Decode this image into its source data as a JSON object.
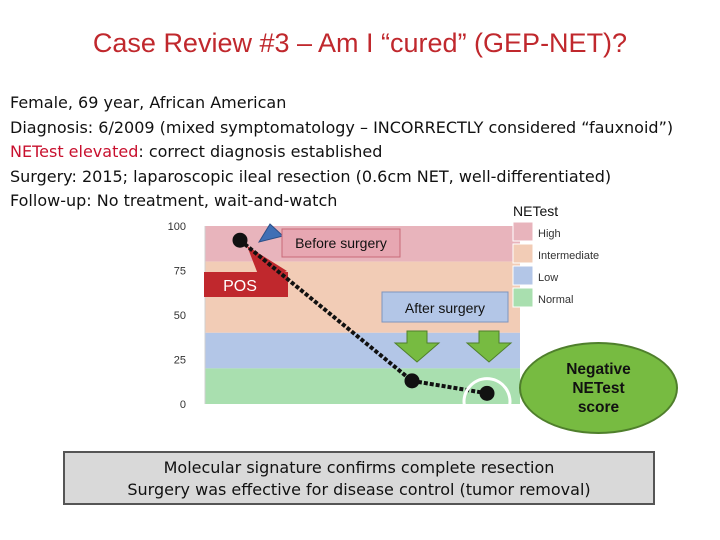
{
  "title": "Case Review #3 – Am I “cured” (GEP-NET)?",
  "patient": {
    "demographics": "Female, 69 year, African American",
    "diagnosis_label": "Diagnosis:",
    "diagnosis_text": " 6/2009 (mixed symptomatology – INCORRECTLY considered “fauxnoid”)",
    "netest_label": "NETest elevated",
    "netest_text": ": correct diagnosis established",
    "surgery_label": "Surgery:",
    "surgery_text": " 2015; laparoscopic ileal resection (0.6cm NET, well-differentiated)",
    "followup_label": "Follow-up:",
    "followup_text": " No treatment, wait-and-watch"
  },
  "chart_data": {
    "type": "scatter",
    "title": "",
    "xlabel": "",
    "ylabel": "",
    "ylim": [
      0,
      100
    ],
    "yticks": [
      "100",
      "75",
      "50",
      "25",
      "0"
    ],
    "bands": [
      {
        "name": "High",
        "from": 80,
        "to": 100,
        "color": "#e8b4bc"
      },
      {
        "name": "Intermediate",
        "from": 40,
        "to": 80,
        "color": "#f2ccb6"
      },
      {
        "name": "Low",
        "from": 20,
        "to": 40,
        "color": "#b3c6e7"
      },
      {
        "name": "Normal",
        "from": 0,
        "to": 20,
        "color": "#a9dfaf"
      }
    ],
    "points": [
      {
        "label": "Before surgery",
        "y": 92
      },
      {
        "label": "After surgery",
        "y": 13
      },
      {
        "label": "",
        "y": 6
      }
    ],
    "legend_title": "NETest",
    "legend_position": "top-right"
  },
  "annotations": {
    "before_surgery": "Before surgery",
    "pos": "POS",
    "after_surgery": "After surgery",
    "negative_line1": "Negative",
    "negative_line2": "NETest",
    "negative_line3": "score"
  },
  "summary": {
    "line1": "Molecular signature confirms complete resection",
    "line2": "Surgery was effective for disease control (tumor removal)"
  }
}
